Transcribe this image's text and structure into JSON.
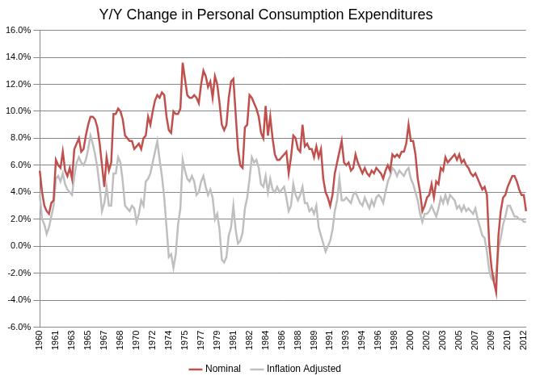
{
  "chart_data": {
    "type": "line",
    "title": "Y/Y Change in Personal Consumption Expenditures",
    "categories": [
      "1960",
      null,
      null,
      null,
      null,
      null,
      null,
      "1961",
      null,
      null,
      null,
      null,
      null,
      null,
      "1963",
      null,
      null,
      null,
      null,
      null,
      null,
      "1965",
      null,
      null,
      null,
      null,
      null,
      null,
      "1967",
      null,
      null,
      null,
      null,
      null,
      null,
      "1968",
      null,
      null,
      null,
      null,
      null,
      null,
      "1970",
      null,
      null,
      null,
      null,
      null,
      null,
      "1972",
      null,
      null,
      null,
      null,
      null,
      null,
      "1974",
      null,
      null,
      null,
      null,
      null,
      null,
      "1975",
      null,
      null,
      null,
      null,
      null,
      null,
      "1977",
      null,
      null,
      null,
      null,
      null,
      null,
      "1979",
      null,
      null,
      null,
      null,
      null,
      null,
      "1981",
      null,
      null,
      null,
      null,
      null,
      null,
      "1982",
      null,
      null,
      null,
      null,
      null,
      null,
      "1984",
      null,
      null,
      null,
      null,
      null,
      null,
      "1986",
      null,
      null,
      null,
      null,
      null,
      null,
      "1988",
      null,
      null,
      null,
      null,
      null,
      null,
      "1989",
      null,
      null,
      null,
      null,
      null,
      null,
      "1991",
      null,
      null,
      null,
      null,
      null,
      null,
      "1993",
      null,
      null,
      null,
      null,
      null,
      null,
      "1994",
      null,
      null,
      null,
      null,
      null,
      null,
      "1996",
      null,
      null,
      null,
      null,
      null,
      null,
      "1998",
      null,
      null,
      null,
      null,
      null,
      null,
      "2000",
      null,
      null,
      null,
      null,
      null,
      null,
      "2002",
      null,
      null,
      null,
      null,
      null,
      null,
      "2003",
      null,
      null,
      null,
      null,
      null,
      null,
      "2005",
      null,
      null,
      null,
      null,
      null,
      null,
      "2007",
      null,
      null,
      null,
      null,
      null,
      null,
      "2009",
      null,
      null,
      null,
      null,
      null,
      null,
      "2010",
      null,
      null,
      null,
      null,
      null,
      null,
      "2012",
      null
    ],
    "series": [
      {
        "name": "Nominal",
        "color": "#c0504d",
        "values": [
          5.6,
          4.0,
          3.0,
          2.6,
          2.4,
          3.2,
          3.4,
          6.4,
          6.0,
          5.8,
          7.0,
          5.6,
          5.2,
          5.8,
          5.0,
          7.2,
          7.6,
          8.0,
          7.0,
          7.2,
          8.2,
          9.0,
          9.6,
          9.6,
          9.4,
          8.8,
          7.6,
          6.0,
          4.4,
          6.6,
          5.6,
          6.2,
          9.8,
          9.8,
          10.2,
          10.0,
          9.4,
          8.2,
          8.0,
          7.8,
          7.8,
          7.2,
          7.4,
          7.6,
          7.2,
          8.0,
          8.2,
          9.6,
          9.0,
          10.0,
          10.8,
          11.2,
          11.0,
          11.4,
          11.2,
          9.6,
          8.6,
          8.4,
          10.0,
          9.8,
          9.8,
          10.2,
          13.6,
          12.4,
          11.2,
          11.0,
          11.0,
          11.2,
          11.0,
          10.6,
          12.0,
          13.0,
          12.6,
          11.8,
          12.2,
          11.0,
          12.6,
          12.0,
          10.6,
          9.0,
          8.6,
          9.0,
          11.0,
          12.2,
          12.4,
          9.8,
          7.2,
          6.0,
          5.8,
          8.8,
          9.0,
          11.2,
          11.0,
          10.6,
          10.2,
          9.6,
          8.4,
          8.0,
          10.4,
          8.2,
          9.6,
          8.0,
          6.8,
          6.4,
          6.4,
          6.6,
          6.8,
          7.0,
          5.4,
          6.6,
          8.2,
          8.0,
          7.2,
          7.0,
          9.0,
          7.4,
          7.6,
          7.2,
          7.2,
          6.6,
          7.4,
          6.6,
          7.2,
          5.0,
          4.0,
          3.6,
          3.0,
          3.8,
          5.4,
          6.2,
          7.0,
          7.8,
          6.2,
          6.0,
          6.2,
          5.6,
          5.8,
          6.8,
          6.2,
          5.8,
          5.4,
          5.8,
          5.4,
          5.2,
          5.6,
          5.4,
          5.8,
          5.6,
          5.4,
          5.0,
          5.6,
          6.0,
          5.6,
          6.8,
          6.6,
          6.8,
          6.6,
          7.0,
          7.0,
          7.6,
          9.0,
          7.8,
          7.8,
          6.8,
          5.0,
          4.0,
          2.6,
          3.0,
          3.6,
          3.8,
          4.6,
          3.6,
          4.8,
          4.6,
          5.8,
          5.6,
          6.6,
          6.2,
          6.4,
          6.6,
          6.8,
          6.4,
          6.8,
          6.2,
          6.4,
          6.0,
          5.8,
          5.4,
          5.2,
          5.4,
          5.0,
          4.6,
          4.2,
          4.4,
          3.8,
          0.2,
          -1.6,
          -2.6,
          -3.4,
          0.8,
          2.6,
          3.6,
          3.8,
          4.4,
          4.8,
          5.2,
          5.2,
          4.8,
          4.2,
          3.8,
          3.8,
          2.6
        ]
      },
      {
        "name": "Inflation Adjusted",
        "color": "#bfbfbf",
        "values": [
          3.8,
          2.0,
          1.6,
          0.9,
          1.4,
          2.2,
          3.0,
          5.0,
          5.2,
          4.8,
          5.4,
          4.6,
          4.2,
          4.0,
          3.8,
          5.2,
          6.2,
          6.6,
          6.2,
          6.0,
          6.4,
          7.2,
          8.2,
          7.6,
          6.8,
          5.8,
          4.4,
          2.6,
          3.2,
          4.4,
          3.0,
          3.0,
          5.4,
          5.4,
          6.6,
          6.2,
          4.8,
          3.0,
          2.8,
          2.6,
          3.0,
          2.8,
          1.8,
          2.4,
          3.4,
          3.0,
          4.8,
          5.0,
          5.4,
          6.2,
          7.0,
          7.8,
          6.4,
          5.2,
          3.6,
          1.4,
          -0.8,
          -0.6,
          -1.6,
          -0.6,
          1.6,
          2.8,
          6.4,
          5.6,
          5.0,
          4.8,
          5.2,
          4.8,
          3.8,
          4.0,
          4.8,
          5.2,
          4.4,
          3.8,
          4.2,
          3.6,
          2.0,
          2.4,
          1.2,
          -1.0,
          -1.2,
          -0.8,
          0.8,
          1.4,
          3.0,
          1.2,
          0.2,
          0.4,
          1.0,
          2.8,
          3.6,
          5.0,
          6.6,
          6.2,
          6.4,
          5.8,
          4.6,
          4.4,
          5.2,
          4.0,
          5.0,
          4.2,
          4.0,
          4.4,
          4.0,
          4.2,
          4.4,
          3.6,
          2.6,
          3.0,
          4.6,
          3.8,
          3.4,
          3.8,
          4.4,
          3.2,
          3.2,
          2.6,
          2.8,
          2.4,
          3.0,
          1.4,
          0.8,
          0.2,
          -0.4,
          0.0,
          0.4,
          1.2,
          2.6,
          3.4,
          5.0,
          3.4,
          3.4,
          3.6,
          3.4,
          3.2,
          3.8,
          4.0,
          3.6,
          3.2,
          3.0,
          3.6,
          3.2,
          2.8,
          3.4,
          3.0,
          3.6,
          3.8,
          3.6,
          3.2,
          4.0,
          4.8,
          5.2,
          5.8,
          5.6,
          5.2,
          5.6,
          5.4,
          5.2,
          5.6,
          5.8,
          5.0,
          4.6,
          4.0,
          3.4,
          2.4,
          1.8,
          2.4,
          2.4,
          2.6,
          3.0,
          2.6,
          2.2,
          2.8,
          3.6,
          3.2,
          3.8,
          3.2,
          3.8,
          3.6,
          3.4,
          2.8,
          3.0,
          2.6,
          3.0,
          2.6,
          2.8,
          2.6,
          2.4,
          2.8,
          2.0,
          1.4,
          0.8,
          0.6,
          -0.4,
          -1.8,
          -2.4,
          -2.6,
          -2.0,
          -0.2,
          0.6,
          1.6,
          2.2,
          3.0,
          3.0,
          2.6,
          2.2,
          2.2,
          2.0,
          2.0,
          1.8,
          1.8
        ]
      }
    ],
    "ylim": [
      -6,
      16
    ],
    "yticks": [
      {
        "value": -6,
        "label": "-6.0%"
      },
      {
        "value": -4,
        "label": "-4.0%"
      },
      {
        "value": -2,
        "label": "-2.0%"
      },
      {
        "value": 0,
        "label": "0.0%"
      },
      {
        "value": 2,
        "label": "2.0%"
      },
      {
        "value": 4,
        "label": "4.0%"
      },
      {
        "value": 6,
        "label": "6.0%"
      },
      {
        "value": 8,
        "label": "8.0%"
      },
      {
        "value": 10,
        "label": "10.0%"
      },
      {
        "value": 12,
        "label": "12.0%"
      },
      {
        "value": 14,
        "label": "14.0%"
      },
      {
        "value": 16,
        "label": "16.0%"
      }
    ],
    "grid": true,
    "legend": "bottom"
  }
}
